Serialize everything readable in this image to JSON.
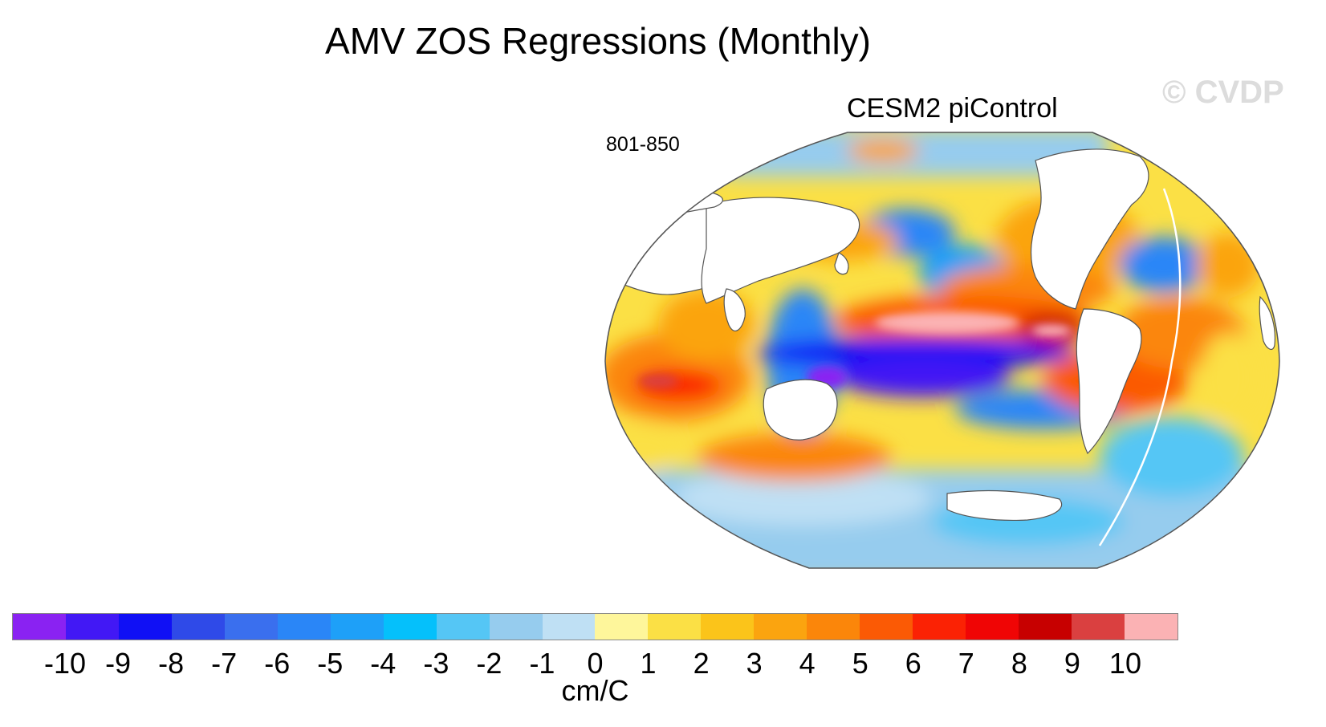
{
  "title": "AMV ZOS Regressions (Monthly)",
  "subtitle": "CESM2 piControl",
  "period": "801-850",
  "watermark": "© CVDP",
  "colorbar": {
    "units": "cm/C",
    "colors": [
      "#8a22f2",
      "#4218f5",
      "#1010f5",
      "#2f4ae8",
      "#3a6fee",
      "#2a86f7",
      "#1ea0f8",
      "#05c0fb",
      "#55c6f5",
      "#96ccee",
      "#bfe0f4",
      "#fef69b",
      "#fbe045",
      "#fbc41a",
      "#fba40f",
      "#fb860a",
      "#fb5a05",
      "#fb2204",
      "#f00505",
      "#c70000",
      "#da4040",
      "#fbb2b4"
    ],
    "ticks": [
      "-10",
      "-9",
      "-8",
      "-7",
      "-6",
      "-5",
      "-4",
      "-3",
      "-2",
      "-1",
      "0",
      "1",
      "2",
      "3",
      "4",
      "5",
      "6",
      "7",
      "8",
      "9",
      "10"
    ]
  }
}
